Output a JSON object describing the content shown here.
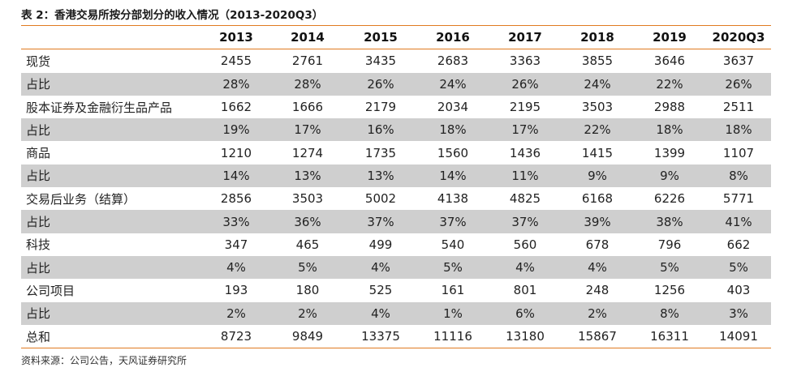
{
  "title": "表 2：香港交易所按分部划分的收入情况（2013-2020Q3）",
  "table": {
    "header": [
      "",
      "2013",
      "2014",
      "2015",
      "2016",
      "2017",
      "2018",
      "2019",
      "2020Q3"
    ],
    "rows": [
      {
        "label": "现货",
        "shaded": false,
        "values": [
          "2455",
          "2761",
          "3435",
          "2683",
          "3363",
          "3855",
          "3646",
          "3637"
        ]
      },
      {
        "label": "占比",
        "shaded": true,
        "values": [
          "28%",
          "28%",
          "26%",
          "24%",
          "26%",
          "24%",
          "22%",
          "26%"
        ]
      },
      {
        "label": "股本证券及金融衍生品产品",
        "shaded": false,
        "values": [
          "1662",
          "1666",
          "2179",
          "2034",
          "2195",
          "3503",
          "2988",
          "2511"
        ]
      },
      {
        "label": "占比",
        "shaded": true,
        "values": [
          "19%",
          "17%",
          "16%",
          "18%",
          "17%",
          "22%",
          "18%",
          "18%"
        ]
      },
      {
        "label": "商品",
        "shaded": false,
        "values": [
          "1210",
          "1274",
          "1735",
          "1560",
          "1436",
          "1415",
          "1399",
          "1107"
        ]
      },
      {
        "label": "占比",
        "shaded": true,
        "values": [
          "14%",
          "13%",
          "13%",
          "14%",
          "11%",
          "9%",
          "9%",
          "8%"
        ]
      },
      {
        "label": "交易后业务（结算）",
        "shaded": false,
        "values": [
          "2856",
          "3503",
          "5002",
          "4138",
          "4825",
          "6168",
          "6226",
          "5771"
        ]
      },
      {
        "label": "占比",
        "shaded": true,
        "values": [
          "33%",
          "36%",
          "37%",
          "37%",
          "37%",
          "39%",
          "38%",
          "41%"
        ]
      },
      {
        "label": "科技",
        "shaded": false,
        "values": [
          "347",
          "465",
          "499",
          "540",
          "560",
          "678",
          "796",
          "662"
        ]
      },
      {
        "label": "占比",
        "shaded": true,
        "values": [
          "4%",
          "5%",
          "4%",
          "5%",
          "4%",
          "4%",
          "5%",
          "5%"
        ]
      },
      {
        "label": "公司项目",
        "shaded": false,
        "values": [
          "193",
          "180",
          "525",
          "161",
          "801",
          "248",
          "1256",
          "403"
        ]
      },
      {
        "label": "占比",
        "shaded": true,
        "values": [
          "2%",
          "2%",
          "4%",
          "1%",
          "6%",
          "2%",
          "8%",
          "3%"
        ]
      },
      {
        "label": "总和",
        "shaded": false,
        "values": [
          "8723",
          "9849",
          "13375",
          "11116",
          "13180",
          "15867",
          "16311",
          "14091"
        ]
      }
    ]
  },
  "source": "资料来源：公司公告，天风证券研究所",
  "colors": {
    "rule": "#e07a20",
    "shade": "#cfcfcf"
  }
}
